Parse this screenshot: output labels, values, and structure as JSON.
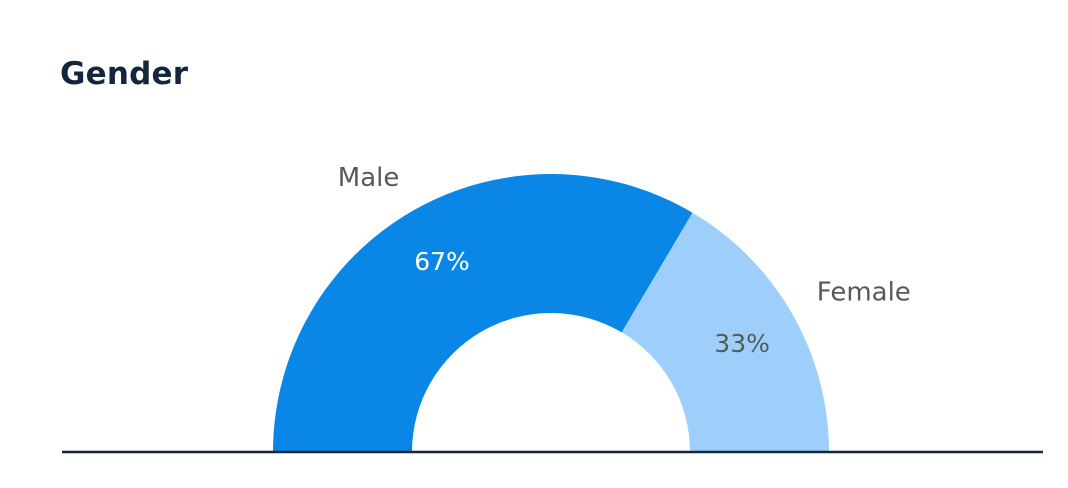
{
  "card": {
    "title": "Gender"
  },
  "chart_data": {
    "type": "pie",
    "subtype": "semi-donut",
    "title": "Gender",
    "categories": [
      "Male",
      "Female"
    ],
    "values": [
      67,
      33
    ],
    "value_labels": [
      "67%",
      "33%"
    ],
    "unit": "%",
    "colors": [
      "#0a87e6",
      "#9ecffa"
    ],
    "value_label_colors": [
      "#ffffff",
      "#555a60"
    ],
    "baseline_color": "#14263d",
    "legend": "none"
  }
}
